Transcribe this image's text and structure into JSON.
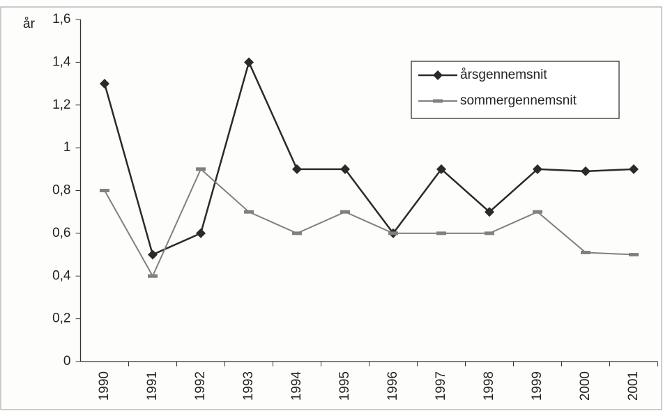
{
  "chart_data": {
    "type": "line",
    "y_label": "år",
    "categories": [
      "1990",
      "1991",
      "1992",
      "1993",
      "1994",
      "1995",
      "1996",
      "1997",
      "1998",
      "1999",
      "2000",
      "2001"
    ],
    "series": [
      {
        "name": "årsgennemsnit",
        "color": "#2a2a2a",
        "marker": "diamond",
        "values": [
          1.3,
          0.5,
          0.6,
          1.4,
          0.9,
          0.9,
          0.6,
          0.9,
          0.7,
          0.9,
          0.89,
          0.9
        ]
      },
      {
        "name": "sommergennemsnit",
        "color": "#808080",
        "marker": "dash",
        "values": [
          0.8,
          0.4,
          0.9,
          0.7,
          0.6,
          0.7,
          0.6,
          0.6,
          0.6,
          0.7,
          0.51,
          0.5
        ]
      }
    ],
    "ylim": [
      0,
      1.6
    ],
    "yticks": [
      0,
      {
        "value": 0.2,
        "label": "0,2"
      },
      {
        "value": 0.4,
        "label": "0,4"
      },
      {
        "value": 0.6,
        "label": "0,6"
      },
      {
        "value": 0.8,
        "label": "0,8"
      },
      1,
      {
        "value": 1.2,
        "label": "1,2"
      },
      {
        "value": 1.4,
        "label": "1,4"
      },
      {
        "value": 1.6,
        "label": "1,6"
      }
    ],
    "grid": false,
    "legend": "upper right"
  }
}
